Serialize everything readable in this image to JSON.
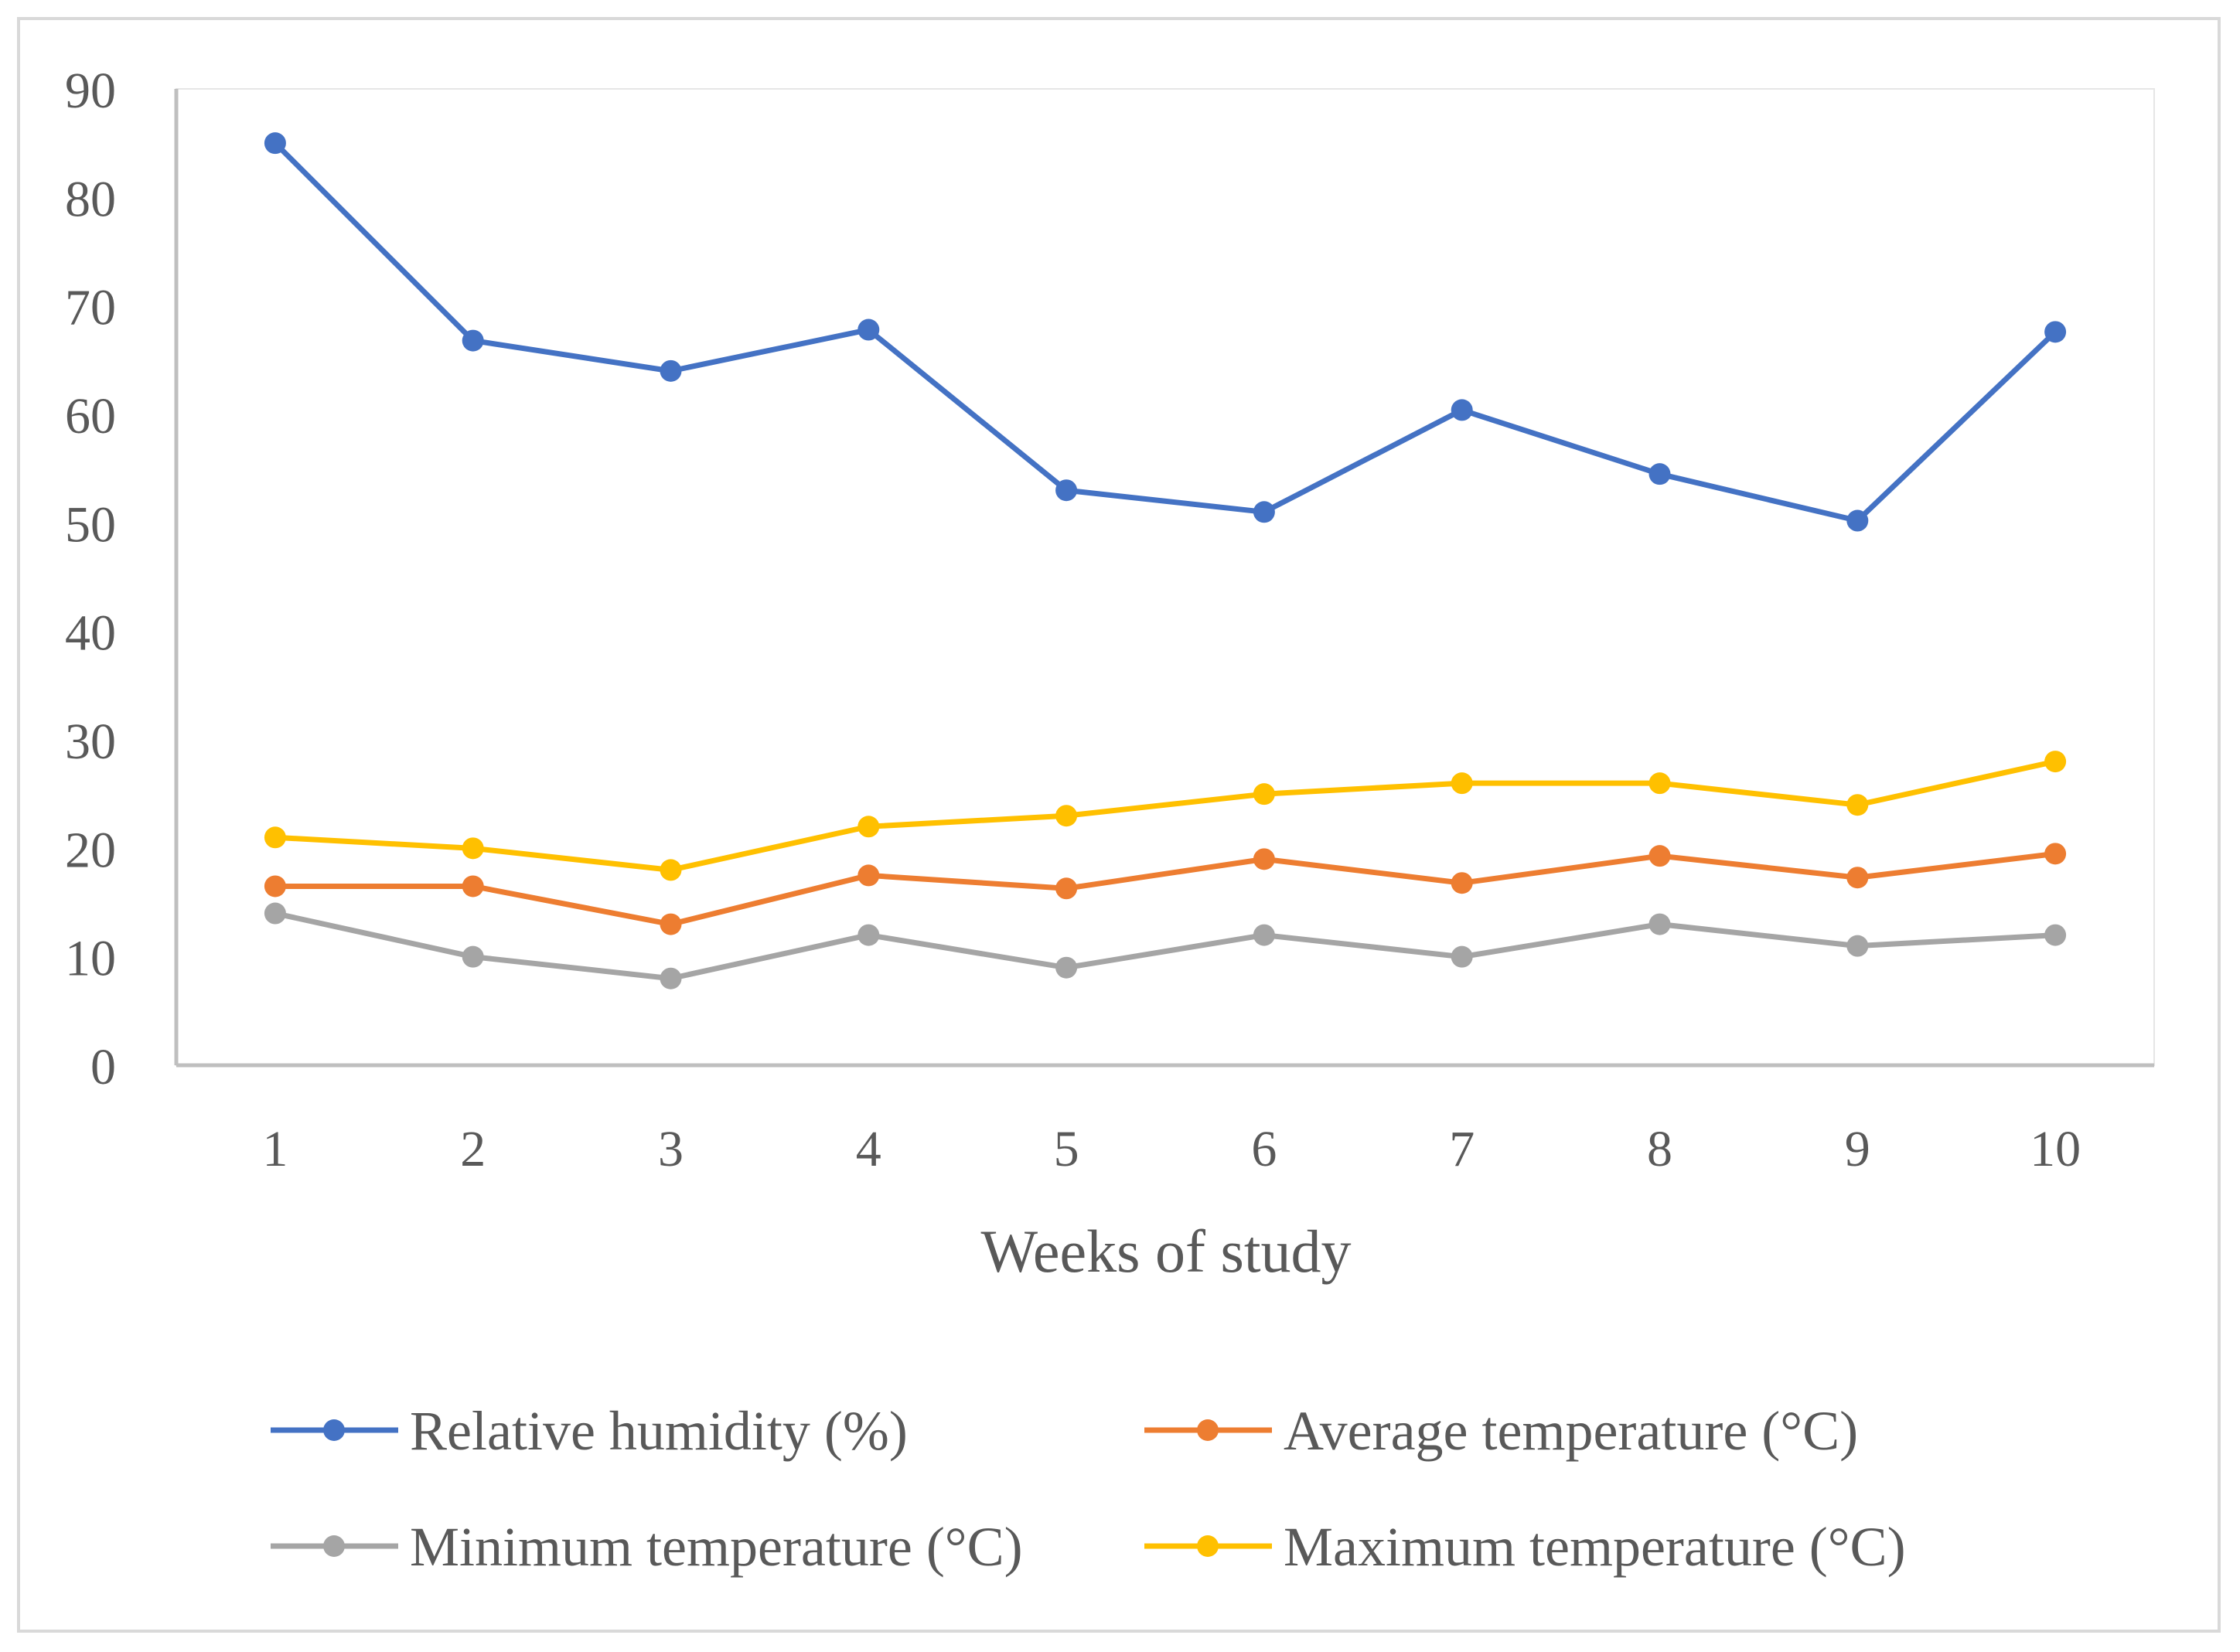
{
  "chart_data": {
    "type": "line",
    "title": "",
    "xlabel": "Weeks of study",
    "ylabel": "",
    "categories": [
      "1",
      "2",
      "3",
      "4",
      "5",
      "6",
      "7",
      "8",
      "9",
      "10"
    ],
    "ylim": [
      0,
      90
    ],
    "yticks": [
      "0",
      "10",
      "20",
      "30",
      "40",
      "50",
      "60",
      "70",
      "80",
      "90"
    ],
    "grid": false,
    "legend_position": "bottom",
    "series": [
      {
        "name": "Relative humidity (%)",
        "color": "#4472C4",
        "values": [
          85,
          66.8,
          64,
          67.8,
          53,
          51,
          60.4,
          54.5,
          50.2,
          67.6
        ]
      },
      {
        "name": "Average temperature (°C)",
        "color": "#ED7D31",
        "values": [
          16.5,
          16.5,
          13,
          17.5,
          16.3,
          19,
          16.8,
          19.3,
          17.3,
          19.5
        ]
      },
      {
        "name": "Minimum temperature (°C)",
        "color": "#A5A5A5",
        "values": [
          14,
          10,
          8,
          12,
          9,
          12,
          10,
          13,
          11,
          12
        ]
      },
      {
        "name": "Maximum temperature (°C)",
        "color": "#FFC000",
        "values": [
          21,
          20,
          18,
          22,
          23,
          25,
          26,
          26,
          24,
          28
        ]
      }
    ]
  }
}
